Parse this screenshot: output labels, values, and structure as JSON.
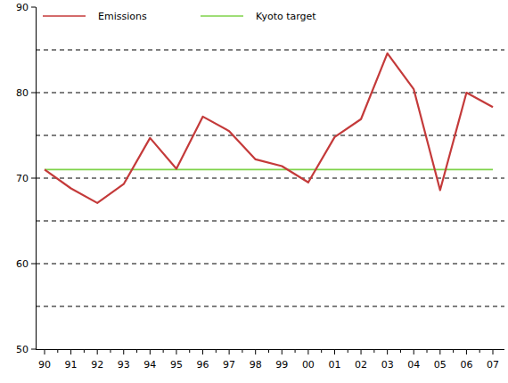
{
  "chart_data": {
    "type": "line",
    "categories": [
      "90",
      "91",
      "92",
      "93",
      "94",
      "95",
      "96",
      "97",
      "98",
      "99",
      "00",
      "01",
      "02",
      "03",
      "04",
      "05",
      "06",
      "07"
    ],
    "series": [
      {
        "name": "Emissions",
        "color": "#c43a3a",
        "values": [
          71.0,
          68.8,
          67.1,
          69.3,
          74.7,
          71.1,
          77.2,
          75.5,
          72.2,
          71.4,
          69.5,
          74.8,
          76.9,
          84.6,
          80.4,
          68.6,
          80.0,
          78.3
        ]
      },
      {
        "name": "Kyoto target",
        "color": "#7fd34a",
        "values": [
          71.0,
          71.0,
          71.0,
          71.0,
          71.0,
          71.0,
          71.0,
          71.0,
          71.0,
          71.0,
          71.0,
          71.0,
          71.0,
          71.0,
          71.0,
          71.0,
          71.0,
          71.0
        ]
      }
    ],
    "ylim": [
      50,
      90
    ],
    "yticks": [
      50,
      60,
      70,
      80,
      90
    ],
    "grid": true,
    "legend": "top"
  }
}
